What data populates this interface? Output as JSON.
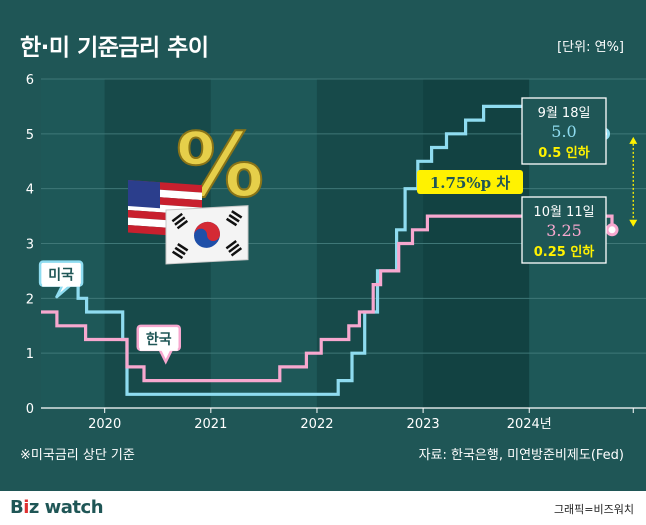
{
  "title": "한·미 기준금리 추이",
  "unit_label": "[단위: 연%]",
  "footnote": "※미국금리 상단 기준",
  "source": "자료: 한국은행, 미연방준비제도(Fed)",
  "brand": {
    "b": "B",
    "sep": "i",
    "z": "z",
    "watch": " watch"
  },
  "credit": "그래픽=비즈워치",
  "chart_data": {
    "type": "line",
    "title": "한·미 기준금리 추이",
    "xlabel": "",
    "ylabel": "연%",
    "xlim": [
      2019.4,
      2025.1
    ],
    "ylim": [
      0,
      6
    ],
    "yticks": [
      0,
      1,
      2,
      3,
      4,
      5,
      6
    ],
    "xticks": [
      {
        "value": 2020.0,
        "label": "2020"
      },
      {
        "value": 2021.0,
        "label": "2021"
      },
      {
        "value": 2022.0,
        "label": "2022"
      },
      {
        "value": 2023.0,
        "label": "2023"
      },
      {
        "value": 2024.0,
        "label": "2024년"
      }
    ],
    "colors": {
      "us": "#8fdcf0",
      "kr": "#f7a8cf",
      "diff": "#fff200"
    },
    "series": [
      {
        "name": "미국",
        "key": "us",
        "x": [
          2019.4,
          2019.58,
          2019.58,
          2019.75,
          2019.75,
          2019.83,
          2019.83,
          2020.17,
          2020.17,
          2020.21,
          2020.21,
          2022.2,
          2022.2,
          2022.33,
          2022.33,
          2022.45,
          2022.45,
          2022.57,
          2022.57,
          2022.75,
          2022.75,
          2022.83,
          2022.83,
          2022.95,
          2022.95,
          2023.08,
          2023.08,
          2023.22,
          2023.22,
          2023.4,
          2023.4,
          2023.57,
          2023.57,
          2024.7,
          2024.7
        ],
        "y": [
          2.5,
          2.5,
          2.25,
          2.25,
          2.0,
          2.0,
          1.75,
          1.75,
          1.25,
          1.25,
          0.25,
          0.25,
          0.5,
          0.5,
          1.0,
          1.0,
          1.75,
          1.75,
          2.5,
          2.5,
          3.25,
          3.25,
          4.0,
          4.0,
          4.5,
          4.5,
          4.75,
          4.75,
          5.0,
          5.0,
          5.25,
          5.25,
          5.5,
          5.5,
          5.0
        ]
      },
      {
        "name": "한국",
        "key": "kr",
        "x": [
          2019.4,
          2019.55,
          2019.55,
          2019.82,
          2019.82,
          2020.21,
          2020.21,
          2020.37,
          2020.37,
          2021.65,
          2021.65,
          2021.9,
          2021.9,
          2022.04,
          2022.04,
          2022.3,
          2022.3,
          2022.4,
          2022.4,
          2022.53,
          2022.53,
          2022.6,
          2022.6,
          2022.77,
          2022.77,
          2022.9,
          2022.9,
          2023.04,
          2023.04,
          2024.78,
          2024.78
        ],
        "y": [
          1.75,
          1.75,
          1.5,
          1.5,
          1.25,
          1.25,
          0.75,
          0.75,
          0.5,
          0.5,
          0.75,
          0.75,
          1.0,
          1.0,
          1.25,
          1.25,
          1.5,
          1.5,
          1.75,
          1.75,
          2.25,
          2.25,
          2.5,
          2.5,
          3.0,
          3.0,
          3.25,
          3.25,
          3.5,
          3.5,
          3.25
        ]
      }
    ],
    "callouts": [
      {
        "key": "us",
        "x": 2024.7,
        "y": 5.0,
        "date": "9월 18일",
        "value": "5.0",
        "change": "0.5 인하"
      },
      {
        "key": "kr",
        "x": 2024.78,
        "y": 3.25,
        "date": "10월 11일",
        "value": "3.25",
        "change": "0.25 인하"
      }
    ],
    "series_labels": [
      {
        "key": "us",
        "text": "미국",
        "x": 2019.58,
        "y": 2.45
      },
      {
        "key": "kr",
        "text": "한국",
        "x": 2020.5,
        "y": 1.28
      }
    ],
    "difference": {
      "from": 3.25,
      "to": 5.0,
      "x": 2024.98,
      "label": "1.75%p 차"
    },
    "badges": {
      "percent": "%"
    }
  }
}
